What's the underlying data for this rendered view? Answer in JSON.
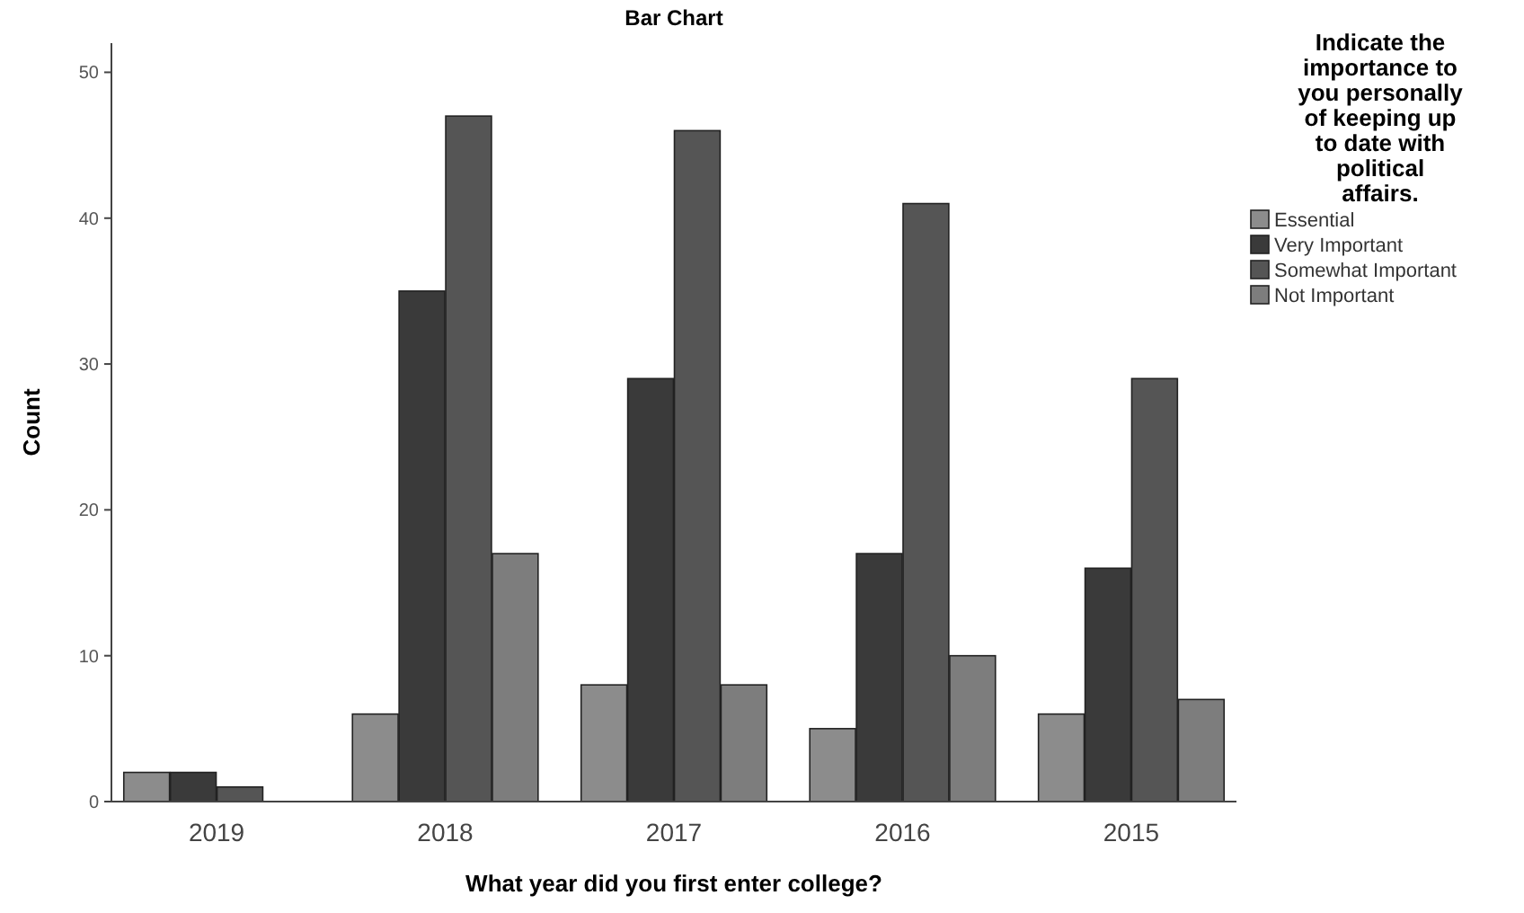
{
  "chart_data": {
    "type": "bar",
    "title": "Bar Chart",
    "xlabel": "What year did you first enter college?",
    "ylabel": "Count",
    "legend_title": "Indicate the importance to you personally of keeping up to date with political affairs.",
    "categories": [
      "2019",
      "2018",
      "2017",
      "2016",
      "2015"
    ],
    "series": [
      {
        "name": "Essential",
        "color": "#8c8c8c",
        "values": [
          2,
          6,
          8,
          5,
          6
        ]
      },
      {
        "name": "Very Important",
        "color": "#3a3a3a",
        "values": [
          2,
          35,
          29,
          17,
          16
        ]
      },
      {
        "name": "Somewhat Important",
        "color": "#555555",
        "values": [
          1,
          47,
          46,
          41,
          29
        ]
      },
      {
        "name": "Not Important",
        "color": "#7d7d7d",
        "values": [
          null,
          17,
          8,
          10,
          7
        ]
      }
    ],
    "ylim": [
      0,
      52
    ],
    "yticks": [
      0,
      10,
      20,
      30,
      40,
      50
    ],
    "grid": false,
    "legend": "right"
  }
}
